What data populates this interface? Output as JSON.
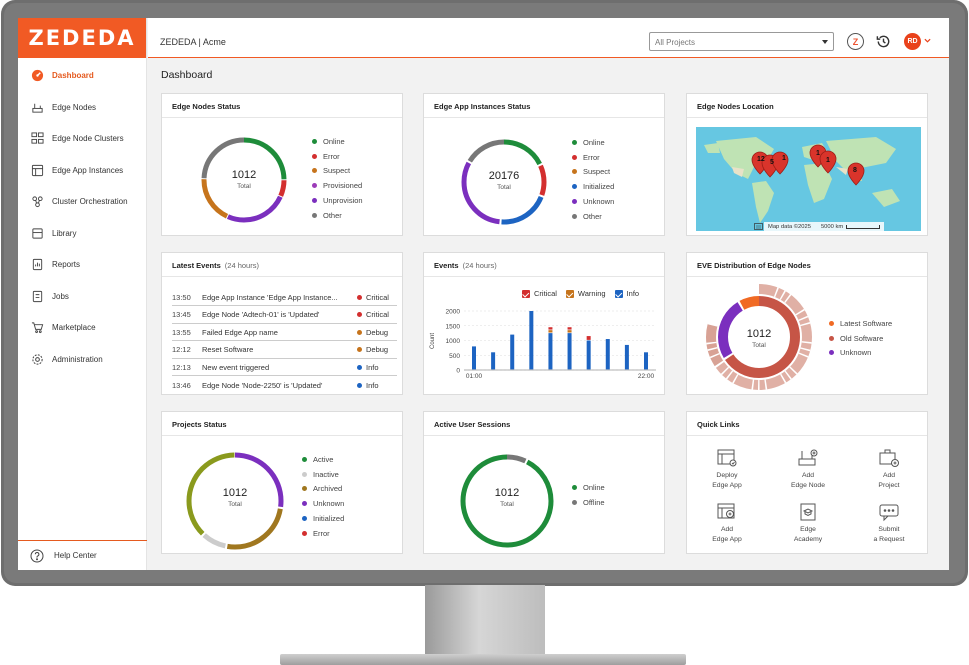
{
  "app": {
    "logo": "ZEDEDA",
    "title": "ZEDEDA | Acme",
    "project_select": "All Projects",
    "user_initials": "RD",
    "page_title": "Dashboard"
  },
  "colors": {
    "accent": "#f15a24",
    "green": "#1e8c3a",
    "red": "#d32f2f",
    "orange": "#c6741c",
    "purple": "#7b2fbe",
    "blue": "#1d64c2",
    "gray": "#777777"
  },
  "sidebar": {
    "items": [
      {
        "label": "Dashboard",
        "icon": "dashboard-icon",
        "active": true
      },
      {
        "label": "Edge Nodes",
        "icon": "edge-nodes-icon"
      },
      {
        "label": "Edge Node Clusters",
        "icon": "clusters-icon"
      },
      {
        "label": "Edge App Instances",
        "icon": "app-instances-icon"
      },
      {
        "label": "Cluster Orchestration",
        "icon": "orchestration-icon"
      },
      {
        "label": "Library",
        "icon": "library-icon"
      },
      {
        "label": "Reports",
        "icon": "reports-icon"
      },
      {
        "label": "Jobs",
        "icon": "jobs-icon"
      },
      {
        "label": "Marketplace",
        "icon": "cart-icon"
      },
      {
        "label": "Administration",
        "icon": "gear-icon"
      }
    ],
    "help": "Help Center"
  },
  "cards": {
    "nodes_status": {
      "title": "Edge Nodes Status",
      "total": "1012",
      "total_label": "Total",
      "legend": [
        "Online",
        "Error",
        "Suspect",
        "Provisioned",
        "Unprovision",
        "Other"
      ]
    },
    "app_status": {
      "title": "Edge App Instances Status",
      "total": "20176",
      "total_label": "Total",
      "legend": [
        "Online",
        "Error",
        "Suspect",
        "Initialized",
        "Unknown",
        "Other"
      ]
    },
    "location": {
      "title": "Edge Nodes Location",
      "attribution": "Map data ©2025",
      "scale": "5000 km",
      "pins": [
        "12",
        "5",
        "1",
        "1",
        "1",
        "8"
      ]
    },
    "latest_events": {
      "title": "Latest Events",
      "sub": "(24 hours)",
      "rows": [
        {
          "time": "13:50",
          "msg": "Edge App Instance 'Edge App Instance...",
          "sev": "Critical"
        },
        {
          "time": "13:45",
          "msg": "Edge Node 'Adtech-01' is 'Updated'",
          "sev": "Critical"
        },
        {
          "time": "13:55",
          "msg": "Failed Edge App name",
          "sev": "Debug"
        },
        {
          "time": "12:12",
          "msg": "Reset Software",
          "sev": "Debug"
        },
        {
          "time": "12:13",
          "msg": "New event triggered",
          "sev": "Info"
        },
        {
          "time": "13:46",
          "msg": "Edge Node 'Node-2250' is 'Updated'",
          "sev": "Info"
        }
      ]
    },
    "events": {
      "title": "Events",
      "sub": "(24 hours)"
    },
    "eve": {
      "title": "EVE Distribution of Edge Nodes",
      "total": "1012",
      "total_label": "Total",
      "legend": [
        "Latest Software",
        "Old Software",
        "Unknown"
      ]
    },
    "projects": {
      "title": "Projects Status",
      "total": "1012",
      "total_label": "Total",
      "legend": [
        "Active",
        "Inactive",
        "Archived",
        "Unknown",
        "Initialized",
        "Error"
      ]
    },
    "sessions": {
      "title": "Active User Sessions",
      "total": "1012",
      "total_label": "Total",
      "legend": [
        "Online",
        "Offline"
      ]
    },
    "quick_links": {
      "title": "Quick Links",
      "items": [
        {
          "l1": "Deploy",
          "l2": "Edge App",
          "icon": "deploy-edge-app-icon"
        },
        {
          "l1": "Add",
          "l2": "Edge Node",
          "icon": "add-edge-node-icon"
        },
        {
          "l1": "Add",
          "l2": "Project",
          "icon": "add-project-icon"
        },
        {
          "l1": "Add",
          "l2": "Edge App",
          "icon": "add-edge-app-icon"
        },
        {
          "l1": "Edge",
          "l2": "Academy",
          "icon": "academy-icon"
        },
        {
          "l1": "Submit",
          "l2": "a Request",
          "icon": "submit-request-icon"
        }
      ]
    }
  },
  "chart_data": {
    "type": "bar",
    "title": "Events",
    "ylabel": "Count",
    "ylim": [
      0,
      2000
    ],
    "yticks": [
      "2000",
      "1500",
      "1000",
      "500",
      "0"
    ],
    "xtick_labels": [
      "01:00",
      "22:00"
    ],
    "legend": [
      "Critical",
      "Warning",
      "Info"
    ],
    "series": [
      {
        "name": "Info",
        "values": [
          800,
          600,
          1200,
          2000,
          1250,
          1250,
          1000,
          1050,
          850,
          600
        ]
      },
      {
        "name": "Warning",
        "values": [
          0,
          0,
          0,
          0,
          100,
          100,
          0,
          0,
          0,
          0
        ]
      },
      {
        "name": "Critical",
        "values": [
          0,
          0,
          0,
          0,
          100,
          100,
          150,
          0,
          0,
          0
        ]
      }
    ]
  }
}
